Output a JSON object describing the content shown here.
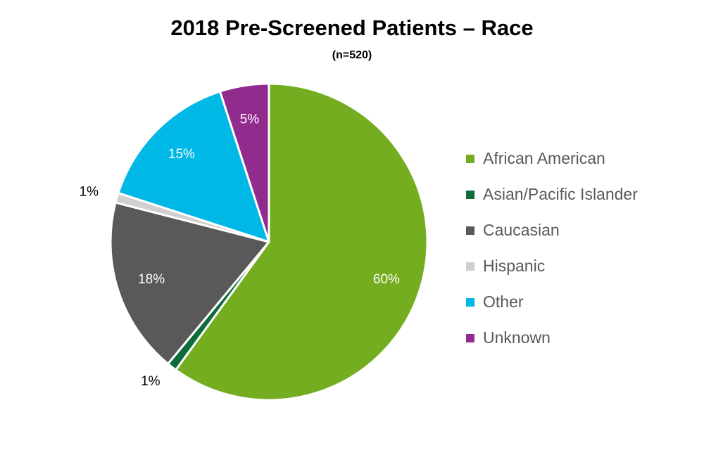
{
  "chart_data": {
    "type": "pie",
    "title": "2018 Pre-Screened Patients – Race",
    "subtitle": "(n=520)",
    "legend_position": "right",
    "slices": [
      {
        "label": "African American",
        "value": 60,
        "display": "60%",
        "color": "#74AD1F"
      },
      {
        "label": "Asian/Pacific Islander",
        "value": 1,
        "display": "1%",
        "color": "#0E6B3A"
      },
      {
        "label": "Caucasian",
        "value": 18,
        "display": "18%",
        "color": "#595959"
      },
      {
        "label": "Hispanic",
        "value": 1,
        "display": "1%",
        "color": "#D0D0D0"
      },
      {
        "label": "Other",
        "value": 15,
        "display": "15%",
        "color": "#00B8E6"
      },
      {
        "label": "Unknown",
        "value": 5,
        "display": "5%",
        "color": "#922B8E"
      }
    ]
  }
}
